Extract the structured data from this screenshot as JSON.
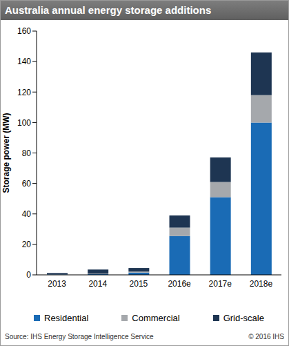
{
  "chart_data": {
    "type": "bar",
    "title": "Australia annual energy storage additions",
    "y_label": "Storage power (MW)",
    "categories": [
      "2013",
      "2014",
      "2015",
      "2016e",
      "2017e",
      "2018e"
    ],
    "series": [
      {
        "name": "Residential",
        "color": "#1a6bb5",
        "values": [
          0.3,
          0.5,
          1.5,
          25.5,
          51,
          100
        ]
      },
      {
        "name": "Commercial",
        "color": "#a5a8ac",
        "values": [
          0.1,
          0.3,
          0.7,
          5.5,
          10,
          18
        ]
      },
      {
        "name": "Grid-scale",
        "color": "#1e3552",
        "values": [
          0.8,
          2.7,
          2.3,
          8,
          16,
          28
        ]
      }
    ],
    "ylim": [
      0,
      160
    ],
    "yticks": [
      0,
      20,
      40,
      60,
      80,
      100,
      120,
      140,
      160
    ],
    "stacked": true,
    "grid": false,
    "legend": "bottom",
    "annotations": [
      "Source: IHS Energy Storage Intelligence Service",
      "© 2016 IHS"
    ]
  }
}
